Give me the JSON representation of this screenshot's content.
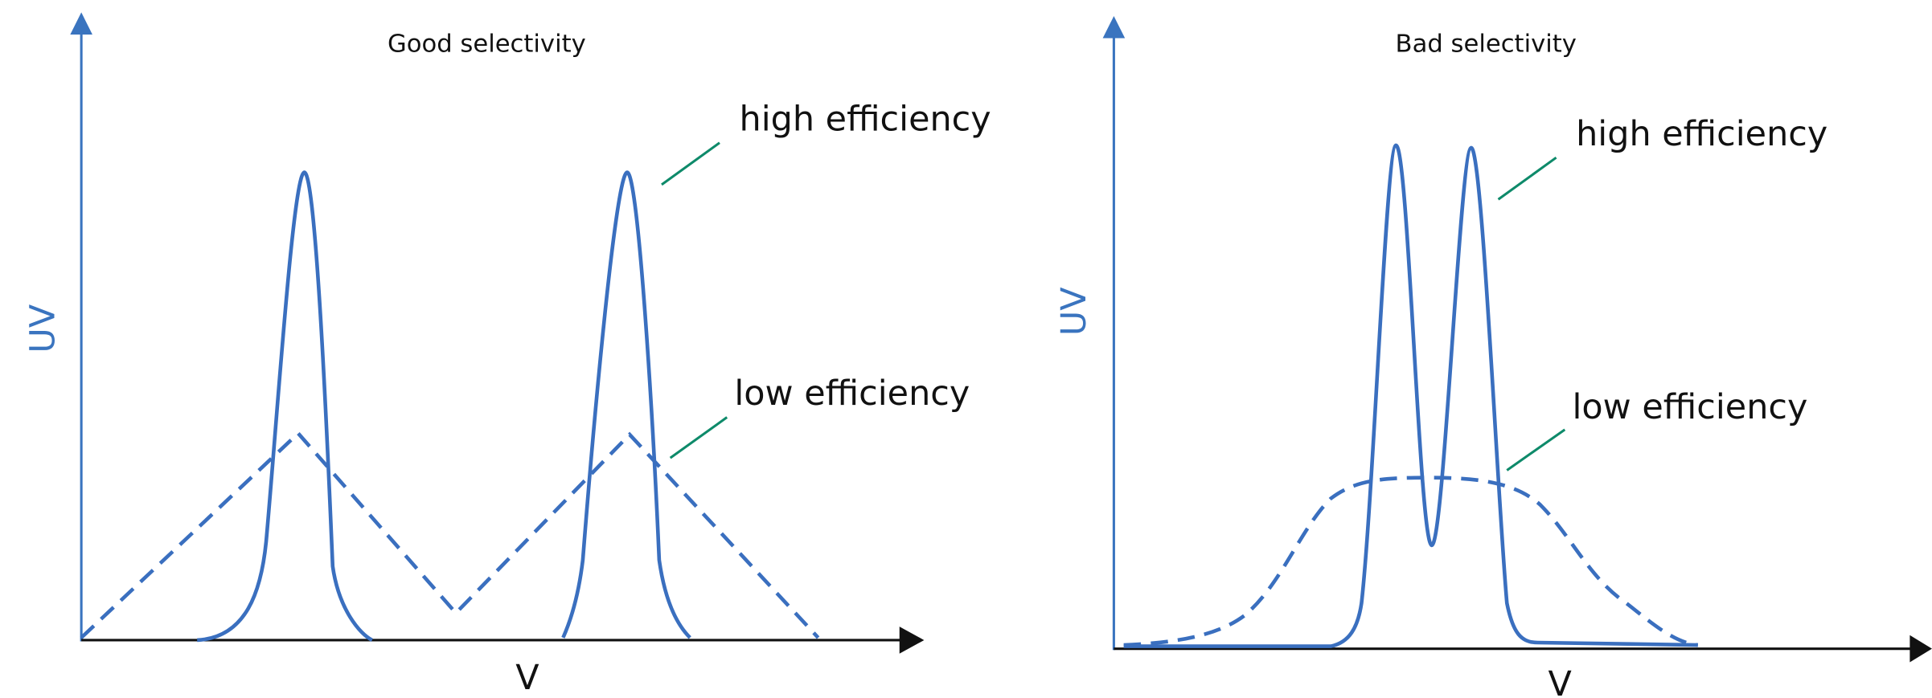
{
  "panels": [
    {
      "title": "Good selectivity",
      "y_label": "UV",
      "x_label": "V",
      "annotations": [
        "high efficiency",
        "low efficiency"
      ]
    },
    {
      "title": "Bad selectivity",
      "y_label": "UV",
      "x_label": "V",
      "annotations": [
        "high efficiency",
        "low efficiency"
      ]
    }
  ]
}
